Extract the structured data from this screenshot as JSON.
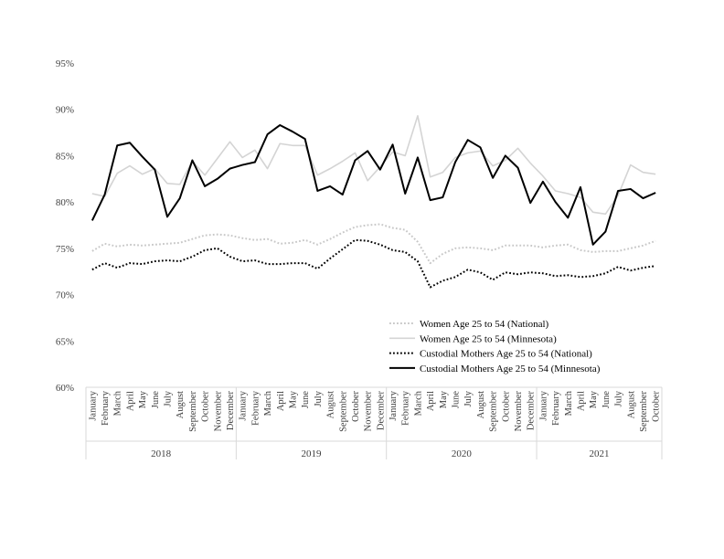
{
  "chart_data": {
    "type": "line",
    "title": "",
    "xlabel": "",
    "ylabel": "",
    "ylim": [
      60,
      95
    ],
    "yticks": [
      "60%",
      "65%",
      "70%",
      "75%",
      "80%",
      "85%",
      "90%",
      "95%"
    ],
    "grid": false,
    "legend_position": "bottom-right",
    "categories": [
      "January",
      "February",
      "March",
      "April",
      "May",
      "June",
      "July",
      "August",
      "September",
      "October",
      "November",
      "December",
      "January",
      "February",
      "March",
      "April",
      "May",
      "June",
      "July",
      "August",
      "September",
      "October",
      "November",
      "December",
      "January",
      "February",
      "March",
      "April",
      "May",
      "June",
      "July",
      "August",
      "September",
      "October",
      "November",
      "December",
      "January",
      "February",
      "March",
      "April",
      "May",
      "June",
      "July",
      "August",
      "September",
      "October"
    ],
    "years": [
      {
        "label": "2018",
        "count": 12
      },
      {
        "label": "2019",
        "count": 12
      },
      {
        "label": "2020",
        "count": 12
      },
      {
        "label": "2021",
        "count": 10
      }
    ],
    "series": [
      {
        "name": "Women Age 25 to 54 (National)",
        "color": "#c8c8c8",
        "style": "dotted",
        "values": [
          74.7,
          75.5,
          75.2,
          75.4,
          75.3,
          75.4,
          75.5,
          75.6,
          76.0,
          76.4,
          76.5,
          76.4,
          76.1,
          75.9,
          76.0,
          75.5,
          75.6,
          75.9,
          75.4,
          76.0,
          76.7,
          77.3,
          77.5,
          77.6,
          77.2,
          77.0,
          75.7,
          73.4,
          74.4,
          75.0,
          75.1,
          75.0,
          74.8,
          75.3,
          75.3,
          75.3,
          75.1,
          75.3,
          75.4,
          74.8,
          74.6,
          74.7,
          74.7,
          75.0,
          75.3,
          75.8
        ]
      },
      {
        "name": "Women Age 25 to 54 (Minnesota)",
        "color": "#d4d4d4",
        "style": "solid",
        "values": [
          80.9,
          80.6,
          83.1,
          83.9,
          83.0,
          83.6,
          82.0,
          81.9,
          84.4,
          82.9,
          84.7,
          86.5,
          84.8,
          85.6,
          83.6,
          86.3,
          86.1,
          86.1,
          82.9,
          83.6,
          84.4,
          85.3,
          82.3,
          83.8,
          85.4,
          85.0,
          89.3,
          82.7,
          83.2,
          84.8,
          85.3,
          85.5,
          83.9,
          84.5,
          85.8,
          84.2,
          82.8,
          81.2,
          80.9,
          80.5,
          78.9,
          78.7,
          80.7,
          84.0,
          83.2,
          83.0
        ]
      },
      {
        "name": "Custodial Mothers Age 25 to 54 (National)",
        "color": "#000000",
        "style": "dotted",
        "values": [
          72.7,
          73.4,
          72.9,
          73.4,
          73.3,
          73.6,
          73.7,
          73.6,
          74.1,
          74.8,
          75.0,
          74.1,
          73.6,
          73.7,
          73.3,
          73.3,
          73.4,
          73.4,
          72.8,
          73.9,
          74.9,
          75.9,
          75.8,
          75.4,
          74.8,
          74.6,
          73.6,
          70.8,
          71.5,
          71.9,
          72.7,
          72.4,
          71.6,
          72.4,
          72.2,
          72.4,
          72.3,
          72.0,
          72.1,
          71.9,
          72.0,
          72.3,
          73.0,
          72.6,
          72.9,
          73.1
        ]
      },
      {
        "name": "Custodial Mothers Age 25 to 54 (Minnesota)",
        "color": "#000000",
        "style": "solid",
        "values": [
          78.0,
          80.8,
          86.1,
          86.4,
          84.9,
          83.5,
          78.4,
          80.4,
          84.5,
          81.7,
          82.5,
          83.6,
          84.0,
          84.3,
          87.3,
          88.3,
          87.6,
          86.8,
          81.2,
          81.7,
          80.8,
          84.5,
          85.5,
          83.5,
          86.2,
          80.9,
          84.8,
          80.2,
          80.5,
          84.3,
          86.7,
          85.9,
          82.6,
          85.0,
          83.7,
          79.9,
          82.2,
          80.0,
          78.3,
          81.6,
          75.4,
          76.8,
          81.2,
          81.4,
          80.4,
          81.0
        ]
      }
    ]
  }
}
